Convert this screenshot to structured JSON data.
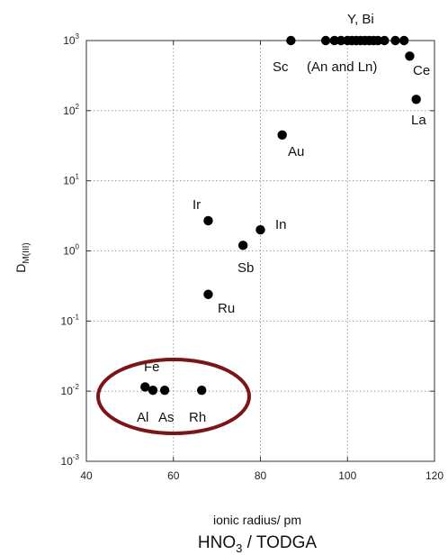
{
  "chart_data": {
    "type": "scatter",
    "title": "",
    "xlabel": "ionic radius/ pm",
    "ylabel_main": "D",
    "ylabel_sub": "M(III)",
    "caption_parts": [
      "HNO",
      "3",
      " / TODGA"
    ],
    "xlim": [
      40,
      120
    ],
    "ylim": [
      0.001,
      1000
    ],
    "yscale": "log",
    "grid": "dotted",
    "x_ticks": [
      {
        "value": 40,
        "label": "40"
      },
      {
        "value": 60,
        "label": "60"
      },
      {
        "value": 80,
        "label": "80"
      },
      {
        "value": 100,
        "label": "100"
      },
      {
        "value": 120,
        "label": "120"
      }
    ],
    "y_ticks": [
      {
        "value": 0.001,
        "base": "10",
        "exp": "-3"
      },
      {
        "value": 0.01,
        "base": "10",
        "exp": "-2"
      },
      {
        "value": 0.1,
        "base": "10",
        "exp": "-1"
      },
      {
        "value": 1,
        "base": "10",
        "exp": "0"
      },
      {
        "value": 10,
        "base": "10",
        "exp": "1"
      },
      {
        "value": 100,
        "base": "10",
        "exp": "2"
      },
      {
        "value": 1000,
        "base": "10",
        "exp": "3"
      }
    ],
    "points": [
      {
        "x": 53.5,
        "y": 0.0115
      },
      {
        "x": 55.3,
        "y": 0.0103
      },
      {
        "x": 58.0,
        "y": 0.0103
      },
      {
        "x": 66.5,
        "y": 0.0103
      },
      {
        "x": 68.0,
        "y": 0.24
      },
      {
        "x": 68.0,
        "y": 2.7
      },
      {
        "x": 76.0,
        "y": 1.2
      },
      {
        "x": 80.0,
        "y": 2.0
      },
      {
        "x": 85.0,
        "y": 45
      },
      {
        "x": 87.0,
        "y": 1000
      },
      {
        "x": 95.0,
        "y": 1000
      },
      {
        "x": 97.0,
        "y": 1000
      },
      {
        "x": 98.5,
        "y": 1000
      },
      {
        "x": 100.0,
        "y": 1000
      },
      {
        "x": 101.0,
        "y": 1000
      },
      {
        "x": 102.0,
        "y": 1000
      },
      {
        "x": 103.0,
        "y": 1000
      },
      {
        "x": 104.0,
        "y": 1000
      },
      {
        "x": 105.0,
        "y": 1000
      },
      {
        "x": 106.0,
        "y": 1000
      },
      {
        "x": 107.0,
        "y": 1000
      },
      {
        "x": 108.5,
        "y": 1000
      },
      {
        "x": 111.0,
        "y": 1000
      },
      {
        "x": 113.0,
        "y": 1000
      },
      {
        "x": 114.3,
        "y": 600
      },
      {
        "x": 115.8,
        "y": 145
      }
    ],
    "annotations": [
      {
        "text": "Fe"
      },
      {
        "text": "Al"
      },
      {
        "text": "As"
      },
      {
        "text": "Rh"
      },
      {
        "text": "Ru"
      },
      {
        "text": "Ir"
      },
      {
        "text": "Sb"
      },
      {
        "text": "In"
      },
      {
        "text": "Au"
      },
      {
        "text": "Sc"
      },
      {
        "text": "(An and Ln)"
      },
      {
        "text": "Y, Bi"
      },
      {
        "text": "Ce"
      },
      {
        "text": "La"
      }
    ],
    "highlight": {
      "shape": "ellipse",
      "color": "#7a1518",
      "encloses": [
        "Al",
        "Fe",
        "As",
        "Rh"
      ]
    },
    "colors": {
      "points": "#000000",
      "axes": "#333333",
      "grid": "#888888",
      "text": "#111111"
    }
  }
}
